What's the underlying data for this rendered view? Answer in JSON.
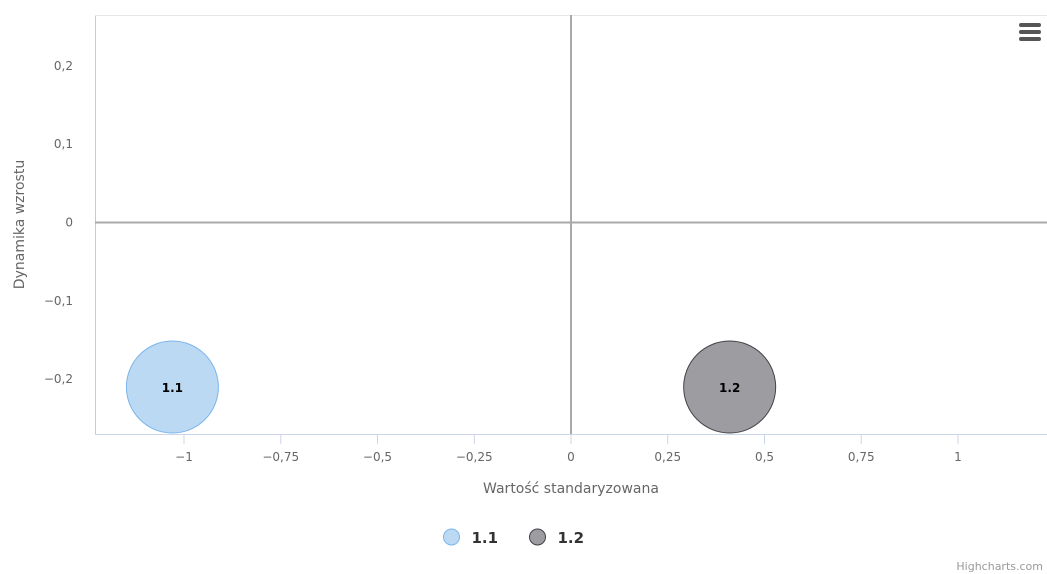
{
  "chart_data": {
    "type": "bubble",
    "xlabel": "Wartość standaryzowana",
    "ylabel": "Dynamika wzrostu",
    "xlim": [
      -1.23,
      1.23
    ],
    "ylim": [
      -0.27,
      0.265
    ],
    "x_ticks": [
      {
        "value": -1,
        "label": "−1"
      },
      {
        "value": -0.75,
        "label": "−0,75"
      },
      {
        "value": -0.5,
        "label": "−0,5"
      },
      {
        "value": -0.25,
        "label": "−0,25"
      },
      {
        "value": 0,
        "label": "0"
      },
      {
        "value": 0.25,
        "label": "0,25"
      },
      {
        "value": 0.5,
        "label": "0,5"
      },
      {
        "value": 0.75,
        "label": "0,75"
      },
      {
        "value": 1,
        "label": "1"
      }
    ],
    "y_ticks": [
      {
        "value": 0.2,
        "label": "0,2"
      },
      {
        "value": 0.1,
        "label": "0,1"
      },
      {
        "value": 0,
        "label": "0"
      },
      {
        "value": -0.1,
        "label": "−0,1"
      },
      {
        "value": -0.2,
        "label": "−0,2"
      }
    ],
    "grid": false,
    "zero_lines": true,
    "legend_position": "bottom-center",
    "series": [
      {
        "name": "1.1",
        "color": "#bbd9f3",
        "stroke": "#7cb5ec",
        "points": [
          {
            "x": -1.03,
            "y": -0.21,
            "label": "1.1"
          }
        ]
      },
      {
        "name": "1.2",
        "color": "#9d9ca0",
        "stroke": "#434348",
        "points": [
          {
            "x": 0.41,
            "y": -0.21,
            "label": "1.2"
          }
        ]
      }
    ]
  },
  "credits": "Highcharts.com",
  "menu": {
    "icon": "hamburger-menu-icon"
  }
}
